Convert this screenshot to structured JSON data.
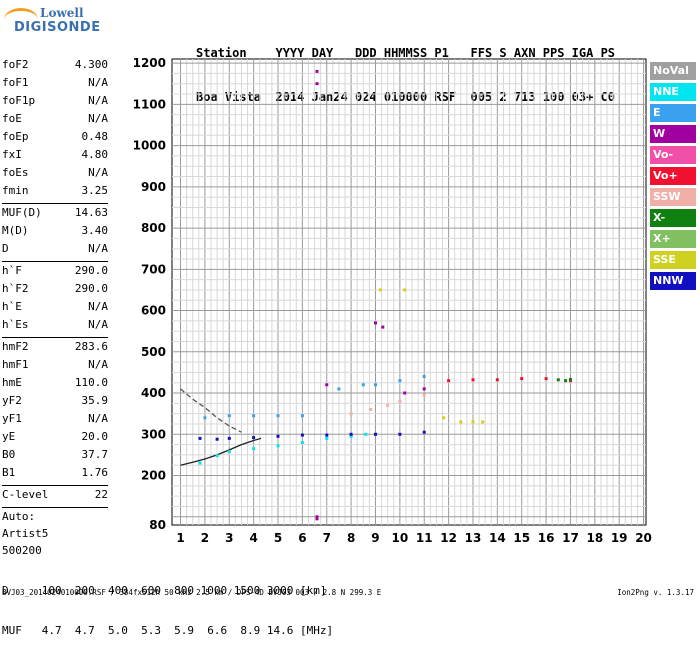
{
  "logo": {
    "line1": "Lowell",
    "line2": "DIGISONDE"
  },
  "header": {
    "row1": "Station    YYYY DAY   DDD HHMMSS P1   FFS S AXN PPS IGA PS",
    "row2": "Boa Vista  2014 Jan24 024 010000 RSF  005 2 713 100 03+ C0"
  },
  "params": {
    "group1": [
      {
        "label": "foF2",
        "value": "4.300"
      },
      {
        "label": "foF1",
        "value": "N/A"
      },
      {
        "label": "foF1p",
        "value": "N/A"
      },
      {
        "label": "foE",
        "value": "N/A"
      },
      {
        "label": "foEp",
        "value": "0.48"
      },
      {
        "label": "fxI",
        "value": "4.80"
      },
      {
        "label": "foEs",
        "value": "N/A"
      },
      {
        "label": "fmin",
        "value": "3.25"
      }
    ],
    "group2": [
      {
        "label": "MUF(D)",
        "value": "14.63"
      },
      {
        "label": "M(D)",
        "value": "3.40"
      },
      {
        "label": "D",
        "value": "N/A"
      }
    ],
    "group3": [
      {
        "label": "h`F",
        "value": "290.0"
      },
      {
        "label": "h`F2",
        "value": "290.0"
      },
      {
        "label": "h`E",
        "value": "N/A"
      },
      {
        "label": "h`Es",
        "value": "N/A"
      }
    ],
    "group4": [
      {
        "label": "hmF2",
        "value": "283.6"
      },
      {
        "label": "hmF1",
        "value": "N/A"
      },
      {
        "label": "hmE",
        "value": "110.0"
      },
      {
        "label": "yF2",
        "value": "35.9"
      },
      {
        "label": "yF1",
        "value": "N/A"
      },
      {
        "label": "yE",
        "value": "20.0"
      },
      {
        "label": "B0",
        "value": "37.7"
      },
      {
        "label": "B1",
        "value": "1.76"
      }
    ],
    "group5": [
      {
        "label": "C-level",
        "value": "22"
      }
    ],
    "auto": [
      "Auto:",
      "Artist5",
      "500200"
    ]
  },
  "legend": [
    {
      "label": "NoVal",
      "color": "#a0a0a0"
    },
    {
      "label": "NNE",
      "color": "#00e5ee"
    },
    {
      "label": "E",
      "color": "#3aa0f0"
    },
    {
      "label": "W",
      "color": "#a000a0"
    },
    {
      "label": "Vo-",
      "color": "#f050a8"
    },
    {
      "label": "Vo+",
      "color": "#f01030"
    },
    {
      "label": "SSW",
      "color": "#f0b0a8"
    },
    {
      "label": "X-",
      "color": "#108010"
    },
    {
      "label": "X+",
      "color": "#80c060"
    },
    {
      "label": "SSE",
      "color": "#d0d020"
    },
    {
      "label": "NNW",
      "color": "#1010c0"
    }
  ],
  "bottom": {
    "row1": "D     100  200  400  600  800 1000 1500 3000 [km]",
    "row2": "MUF   4.7  4.7  5.0  5.3  5.9  6.6  8.9 14.6 [MHz]"
  },
  "footer": "BVJ03_2014024010000.RSF / 384fx512h 50 kHz 2.5 km / DPS-4D BVJ03 003 / 2.8 N 299.3 E",
  "version": "Ion2Png v. 1.3.17",
  "chart_data": {
    "type": "scatter",
    "x_ticks": [
      1,
      2,
      3,
      4,
      5,
      6,
      7,
      8,
      9,
      10,
      11,
      12,
      13,
      14,
      15,
      16,
      17,
      18,
      19,
      20
    ],
    "y_ticks": [
      80,
      200,
      300,
      400,
      500,
      600,
      700,
      800,
      900,
      1000,
      1100,
      1200
    ],
    "xlim": [
      0.65,
      20.1
    ],
    "ylim": [
      80,
      1210
    ],
    "grid": true,
    "legend_position": "right",
    "traces": [
      {
        "name": "NNE",
        "color": "#00e5ee",
        "points": [
          [
            1.8,
            230
          ],
          [
            2.5,
            248
          ],
          [
            3,
            258
          ],
          [
            4,
            265
          ],
          [
            5,
            272
          ],
          [
            6,
            280
          ],
          [
            7,
            290
          ],
          [
            8,
            295
          ],
          [
            8.6,
            300
          ]
        ]
      },
      {
        "name": "E",
        "color": "#3aa0f0",
        "points": [
          [
            2,
            340
          ],
          [
            3,
            345
          ],
          [
            4,
            345
          ],
          [
            5,
            345
          ],
          [
            6,
            345
          ],
          [
            7.5,
            410
          ],
          [
            8.5,
            420
          ],
          [
            9,
            420
          ],
          [
            10,
            430
          ],
          [
            11,
            440
          ]
        ]
      },
      {
        "name": "NNW",
        "color": "#1010c0",
        "points": [
          [
            1.8,
            290
          ],
          [
            2.5,
            288
          ],
          [
            3,
            290
          ],
          [
            4,
            292
          ],
          [
            5,
            295
          ],
          [
            6,
            298
          ],
          [
            7,
            298
          ],
          [
            8,
            300
          ],
          [
            9,
            300
          ],
          [
            10,
            300
          ],
          [
            11,
            305
          ]
        ]
      },
      {
        "name": "W",
        "color": "#a000a0",
        "points": [
          [
            6.6,
            1180
          ],
          [
            6.6,
            1150
          ],
          [
            6.6,
            100
          ],
          [
            6.6,
            95
          ],
          [
            7,
            420
          ],
          [
            9,
            570
          ],
          [
            9.3,
            560
          ],
          [
            10.2,
            400
          ],
          [
            11,
            410
          ]
        ]
      },
      {
        "name": "SSW",
        "color": "#f0b0a8",
        "points": [
          [
            8,
            350
          ],
          [
            8.8,
            360
          ],
          [
            9.5,
            370
          ],
          [
            10,
            380
          ],
          [
            11,
            395
          ]
        ]
      },
      {
        "name": "SSE",
        "color": "#d0d020",
        "points": [
          [
            11.8,
            340
          ],
          [
            12.5,
            330
          ],
          [
            13,
            330
          ],
          [
            13.4,
            330
          ],
          [
            9.2,
            650
          ],
          [
            10.2,
            650
          ]
        ]
      },
      {
        "name": "Vo+",
        "color": "#f01030",
        "points": [
          [
            12,
            430
          ],
          [
            13,
            432
          ],
          [
            14,
            432
          ],
          [
            15,
            435
          ],
          [
            16,
            435
          ],
          [
            17,
            430
          ]
        ]
      },
      {
        "name": "X-",
        "color": "#108010",
        "points": [
          [
            16.5,
            432
          ],
          [
            16.8,
            430
          ],
          [
            17,
            433
          ]
        ]
      }
    ],
    "profile_curves": [
      {
        "style": "dashed",
        "points": [
          [
            1,
            410
          ],
          [
            1.5,
            385
          ],
          [
            2,
            365
          ],
          [
            2.5,
            340
          ],
          [
            3,
            320
          ],
          [
            3.5,
            305
          ]
        ]
      },
      {
        "style": "solid",
        "points": [
          [
            1,
            225
          ],
          [
            1.5,
            232
          ],
          [
            2,
            240
          ],
          [
            2.5,
            250
          ],
          [
            3,
            262
          ],
          [
            3.5,
            275
          ],
          [
            4,
            285
          ],
          [
            4.3,
            290
          ]
        ]
      }
    ]
  }
}
